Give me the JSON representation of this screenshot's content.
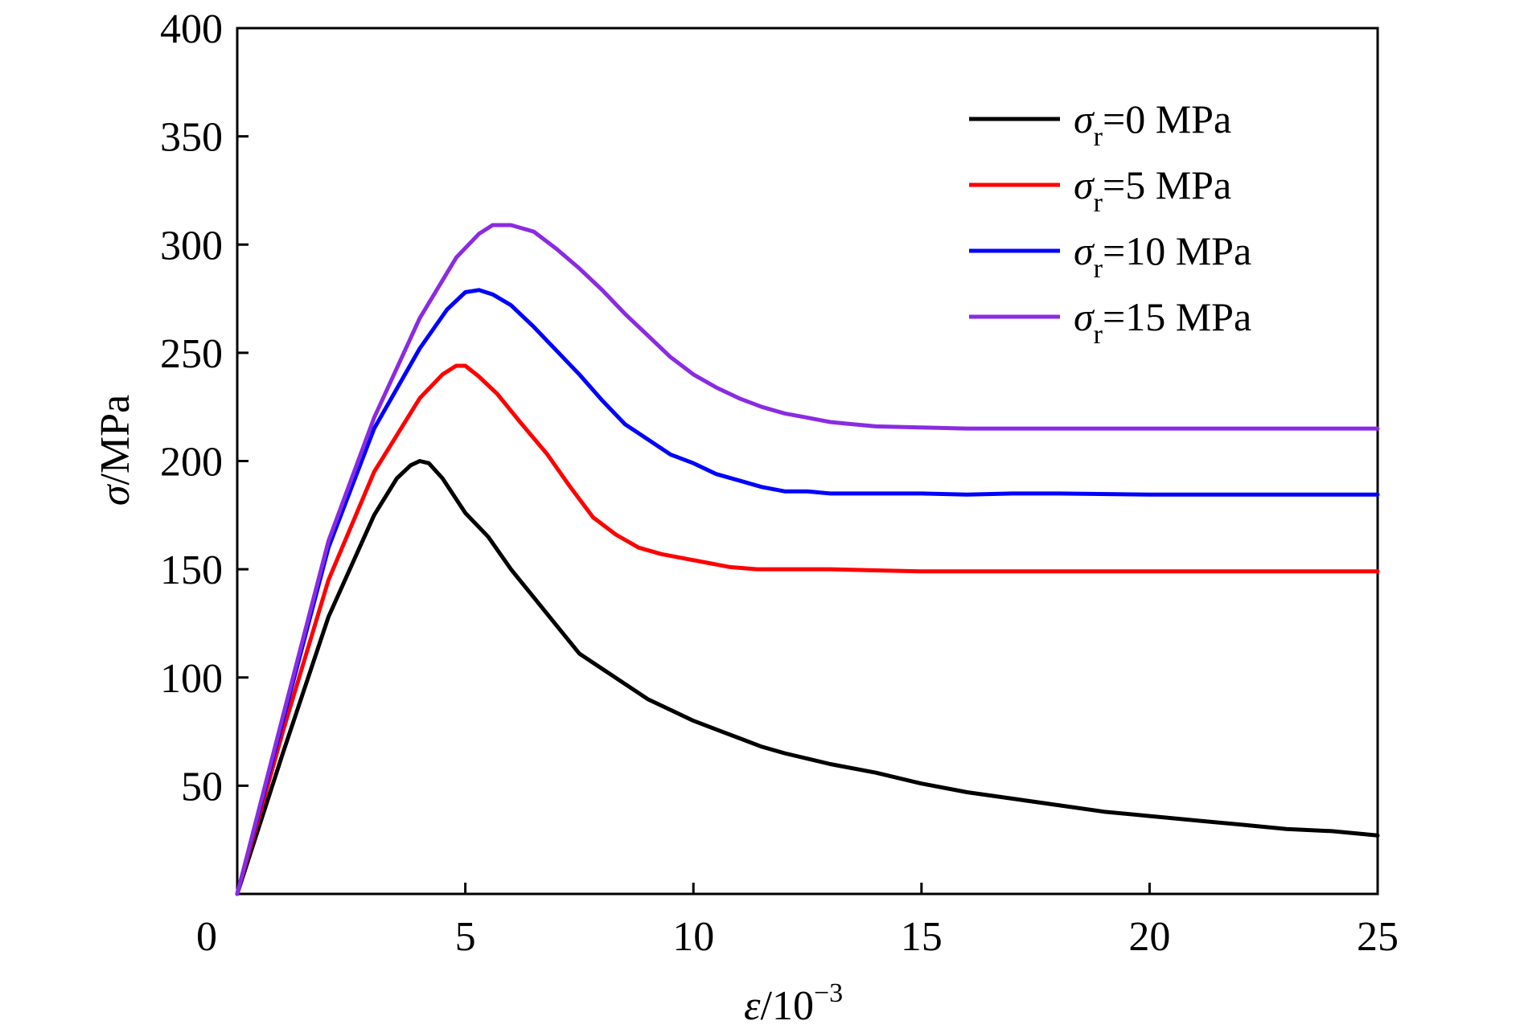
{
  "chart_data": {
    "type": "line",
    "xlabel": {
      "symbol": "ε",
      "unit": "/10",
      "exp": "−3"
    },
    "ylabel": {
      "symbol": "σ",
      "unit": "/MPa"
    },
    "xlim": [
      0,
      25
    ],
    "ylim": [
      0,
      400
    ],
    "xticks": [
      0,
      5,
      10,
      15,
      20,
      25
    ],
    "yticks": [
      50,
      100,
      150,
      200,
      250,
      300,
      350,
      400
    ],
    "grid": false,
    "legend": {
      "placement": "top-right",
      "symbol": "σ",
      "subscript": "r",
      "entries": [
        "=0 MPa",
        "=5 MPa",
        "=10 MPa",
        "=15 MPa"
      ]
    },
    "series": [
      {
        "name": "σr=0 MPa",
        "color": "#000000",
        "x": [
          0,
          1,
          2,
          3,
          3.5,
          3.8,
          4.0,
          4.2,
          4.5,
          5.0,
          5.5,
          6.0,
          6.5,
          7.0,
          7.5,
          8.0,
          8.5,
          9.0,
          9.5,
          10.0,
          10.5,
          11.0,
          11.5,
          12.0,
          13.0,
          14.0,
          15.0,
          16.0,
          17.0,
          18.0,
          19.0,
          20.0,
          21.0,
          22.0,
          23.0,
          24.0,
          25.0
        ],
        "y": [
          0,
          65,
          128,
          175,
          192,
          198,
          200,
          199,
          192,
          176,
          165,
          150,
          137,
          124,
          111,
          104,
          97,
          90,
          85,
          80,
          76,
          72,
          68,
          65,
          60,
          56,
          51,
          47,
          44,
          41,
          38,
          36,
          34,
          32,
          30,
          29,
          27
        ]
      },
      {
        "name": "σr=5 MPa",
        "color": "#ff0000",
        "x": [
          0,
          1,
          2,
          3,
          4.0,
          4.5,
          4.8,
          5.0,
          5.3,
          5.7,
          6.2,
          6.8,
          7.3,
          7.8,
          8.3,
          8.8,
          9.3,
          9.8,
          10.3,
          10.8,
          11.4,
          12.0,
          13.0,
          14.0,
          15.0,
          16.0,
          17.0,
          18.0,
          20.0,
          22.0,
          25.0
        ],
        "y": [
          0,
          75,
          145,
          195,
          229,
          240,
          244,
          244,
          239,
          231,
          218,
          203,
          188,
          174,
          166,
          160,
          157,
          155,
          153,
          151,
          150,
          150,
          150,
          149.5,
          149,
          149,
          149,
          149,
          149,
          149,
          149
        ]
      },
      {
        "name": "σr=10 MPa",
        "color": "#0000ff",
        "x": [
          0,
          1,
          2,
          3,
          4.0,
          4.6,
          5.0,
          5.3,
          5.6,
          6.0,
          6.5,
          7.0,
          7.5,
          8.0,
          8.5,
          9.0,
          9.5,
          10.0,
          10.5,
          11.0,
          11.5,
          12.0,
          12.5,
          13.0,
          14.0,
          15.0,
          16.0,
          17.0,
          18.0,
          20.0,
          22.0,
          25.0
        ],
        "y": [
          0,
          80,
          160,
          215,
          252,
          270,
          278,
          279,
          277,
          272,
          262,
          251,
          240,
          228,
          217,
          210,
          203,
          199,
          194,
          191,
          188,
          186,
          186,
          185,
          185,
          185,
          184.5,
          185,
          185,
          184.5,
          184.5,
          184.5
        ]
      },
      {
        "name": "σr=15 MPa",
        "color": "#8a2be2",
        "x": [
          0,
          1,
          2,
          3,
          4.0,
          4.8,
          5.3,
          5.6,
          6.0,
          6.5,
          7.0,
          7.5,
          8.0,
          8.5,
          9.0,
          9.5,
          10.0,
          10.5,
          11.0,
          11.5,
          12.0,
          12.5,
          13.0,
          13.5,
          14.0,
          15.0,
          16.0,
          18.0,
          20.0,
          22.0,
          25.0
        ],
        "y": [
          0,
          82,
          163,
          220,
          266,
          294,
          305,
          309,
          309,
          306,
          298,
          289,
          279,
          268,
          258,
          248,
          240,
          234,
          229,
          225,
          222,
          220,
          218,
          217,
          216,
          215.5,
          215,
          215,
          215,
          215,
          215
        ]
      }
    ]
  }
}
